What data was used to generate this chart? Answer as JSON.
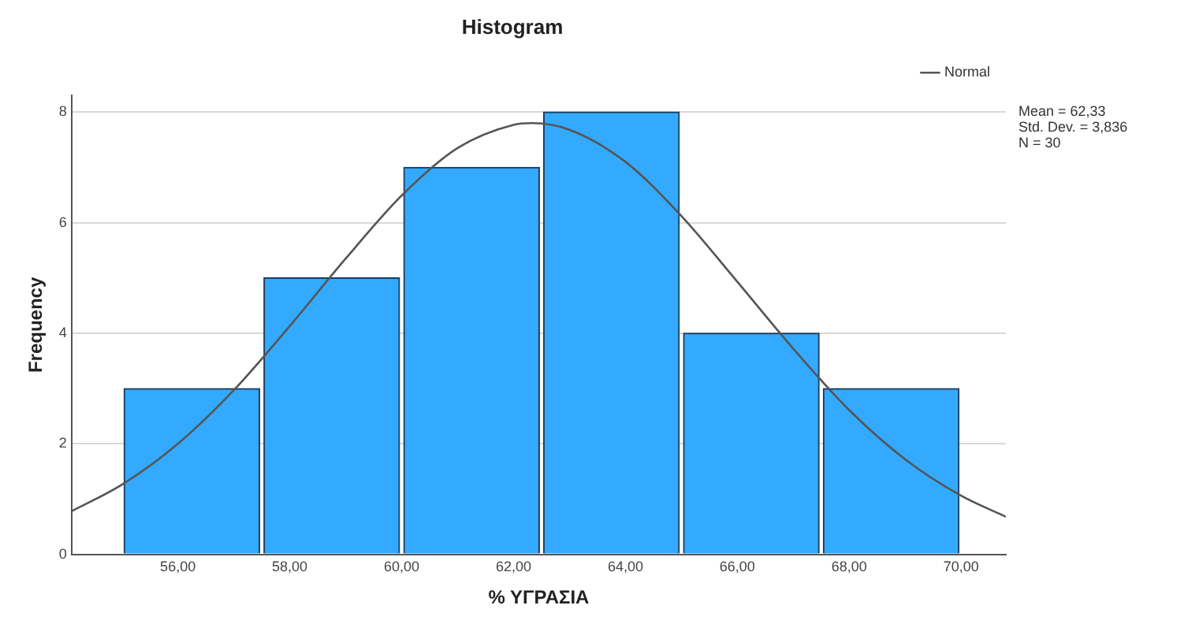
{
  "chart_data": {
    "type": "histogram",
    "title": "Histogram",
    "xlabel": "% ΥΓΡΑΣΙΑ",
    "ylabel": "Frequency",
    "bins": [
      55,
      57.5,
      60,
      62.5,
      65,
      67.5,
      70
    ],
    "values": [
      3,
      5,
      7,
      8,
      4,
      3
    ],
    "color": "#33aaff",
    "series": [
      {
        "name": "Normal",
        "type": "line",
        "color": "#555555",
        "x": [
          54.1,
          55,
          56,
          57,
          58,
          59,
          60,
          61,
          62,
          62.33,
          63,
          64,
          65,
          66,
          67,
          68,
          69,
          70,
          70.8
        ],
        "values": [
          0.78,
          1.26,
          2.0,
          2.97,
          4.13,
          5.35,
          6.49,
          7.35,
          7.77,
          7.8,
          7.68,
          7.1,
          6.12,
          4.93,
          3.72,
          2.61,
          1.72,
          1.06,
          0.68
        ]
      }
    ],
    "xlim": [
      54.1,
      70.8
    ],
    "ylim": [
      0,
      8.3
    ],
    "xticks": [
      {
        "value": 56,
        "label": "56,00"
      },
      {
        "value": 58,
        "label": "58,00"
      },
      {
        "value": 60,
        "label": "60,00"
      },
      {
        "value": 62,
        "label": "62,00"
      },
      {
        "value": 64,
        "label": "64,00"
      },
      {
        "value": 66,
        "label": "66,00"
      },
      {
        "value": 68,
        "label": "68,00"
      },
      {
        "value": 70,
        "label": "70,00"
      }
    ],
    "yticks": [
      0,
      2,
      4,
      6,
      8
    ],
    "grid": "y",
    "legend": "top right",
    "marker": "none",
    "annotations": [
      "Mean = 62,33",
      "Std. Dev. = 3,836",
      "N = 30"
    ]
  }
}
